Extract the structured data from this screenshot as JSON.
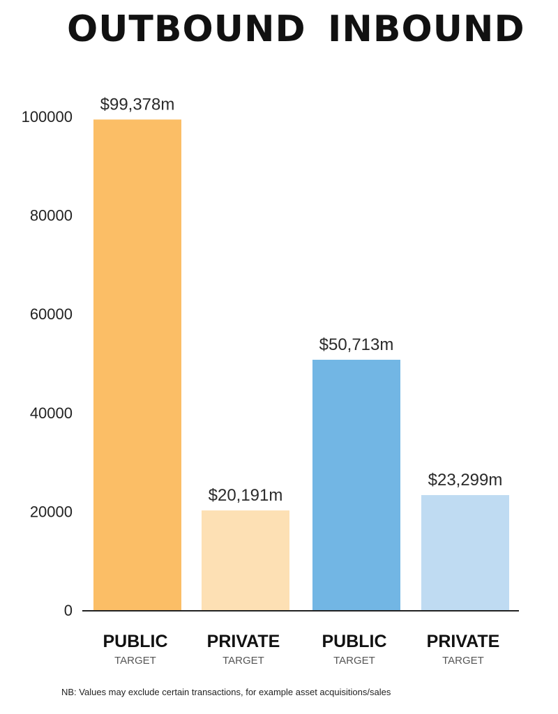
{
  "headings": {
    "outbound": "OUTBOUND",
    "inbound": "INBOUND"
  },
  "chart_data": {
    "type": "bar",
    "title": "",
    "xlabel": "",
    "ylabel": "",
    "ylim": [
      0,
      100000
    ],
    "yticks": [
      "0",
      "20000",
      "40000",
      "60000",
      "80000",
      "100000"
    ],
    "yticks_values": [
      0,
      20000,
      40000,
      60000,
      80000,
      100000
    ],
    "grid": false,
    "categories": [
      {
        "main": "PUBLIC",
        "sub": "TARGET",
        "group": "OUTBOUND"
      },
      {
        "main": "PRIVATE",
        "sub": "TARGET",
        "group": "OUTBOUND"
      },
      {
        "main": "PUBLIC",
        "sub": "TARGET",
        "group": "INBOUND"
      },
      {
        "main": "PRIVATE",
        "sub": "TARGET",
        "group": "INBOUND"
      }
    ],
    "values": [
      99378,
      20191,
      50713,
      23299
    ],
    "value_labels": [
      "$99,378m",
      "$20,191m",
      "$50,713m",
      "$23,299m"
    ],
    "colors": [
      "#FBBE66",
      "#FDE0B4",
      "#72B6E4",
      "#BFDBF2"
    ]
  },
  "footnote": "NB: Values may exclude certain transactions, for example asset acquisitions/sales"
}
